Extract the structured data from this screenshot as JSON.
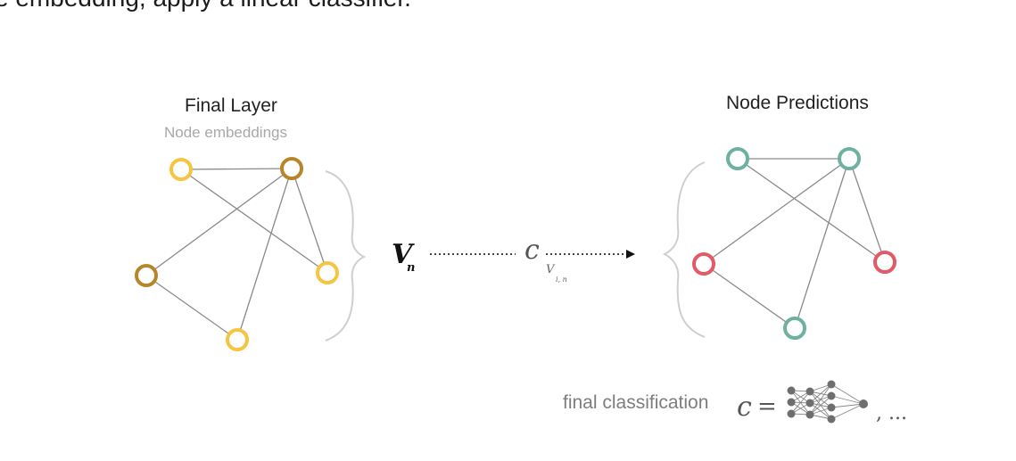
{
  "header": {
    "text": "e embedding, apply a linear classifier."
  },
  "left_graph": {
    "title": "Final Layer",
    "subtitle": "Node embeddings",
    "colors": {
      "light": "#f5c542",
      "dark": "#b8862a"
    }
  },
  "right_graph": {
    "title": "Node Predictions",
    "colors": {
      "teal": "#6fb1a0",
      "red": "#e05a67"
    }
  },
  "pipeline": {
    "input_symbol": "V",
    "input_subscript": "n",
    "classifier_symbol": "c",
    "classifier_subscript": "V",
    "classifier_subscript_index": "i, n"
  },
  "footer": {
    "label": "final classification",
    "symbol": "c",
    "equals": "=",
    "ellipsis": ", ..."
  }
}
